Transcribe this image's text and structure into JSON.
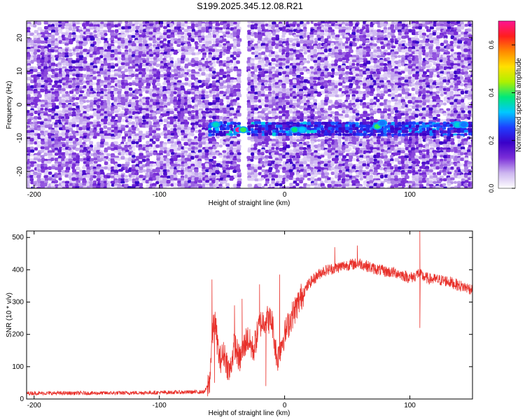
{
  "page": {
    "title": "S199.2025.345.12.08.R21"
  },
  "colors": {
    "series_line": "#e8302a",
    "axis": "#000000",
    "background": "#ffffff",
    "colorbar_stops": [
      "#ffffff",
      "#cdb6f0",
      "#7b2fd8",
      "#3a00c8",
      "#1f3dff",
      "#00c8ff",
      "#00e87a",
      "#aef000",
      "#ffe000",
      "#ff8a00",
      "#ff1e1e",
      "#ff1493"
    ]
  },
  "chart_data": [
    {
      "type": "heatmap",
      "title": "S199.2025.345.12.08.R21",
      "xlabel": "Height of straight line (km)",
      "ylabel": "Frequency (Hz)",
      "xlim": [
        -206,
        150
      ],
      "ylim": [
        -25,
        25
      ],
      "x_ticks": [
        -200,
        -100,
        0,
        100
      ],
      "x_tick_labels": [
        "-200",
        "-100",
        "0",
        "100"
      ],
      "y_ticks": [
        -20,
        -10,
        0,
        10,
        20
      ],
      "y_tick_labels": [
        "-20",
        "-10",
        "0",
        "10",
        "20"
      ],
      "colorbar": {
        "label": "Normalized spectral amplitude",
        "range": [
          0.0,
          0.7
        ],
        "ticks": [
          0.0,
          0.2,
          0.4,
          0.6
        ],
        "tick_labels": [
          "0.0",
          "0.2",
          "0.4",
          "0.6"
        ]
      },
      "features": {
        "signal_band": {
          "frequency_hz": -6.5,
          "x_start": -62,
          "x_end": 150,
          "peak_points": [
            {
              "x": -55,
              "y": -6,
              "amp": 0.35
            },
            {
              "x": -37,
              "y": -7.5,
              "amp": 0.7
            },
            {
              "x": -33,
              "y": -7.5,
              "amp": 0.4
            },
            {
              "x": 8,
              "y": -7.5,
              "amp": 0.38
            },
            {
              "x": 14,
              "y": -7.5,
              "amp": 0.32
            },
            {
              "x": 74,
              "y": -6.5,
              "amp": 0.4
            },
            {
              "x": 78,
              "y": -5.5,
              "amp": 0.28
            },
            {
              "x": 138,
              "y": -6,
              "amp": 0.34
            },
            {
              "x": 143,
              "y": -6,
              "amp": 0.28
            }
          ]
        },
        "blank_column_x": [
          -38,
          -30
        ]
      },
      "grid": false
    },
    {
      "type": "line",
      "xlabel": "Height of straight line (km)",
      "ylabel": "SNR (10 * v/v)",
      "xlim": [
        -206,
        150
      ],
      "ylim": [
        0,
        520
      ],
      "x_ticks": [
        -200,
        -100,
        0,
        100
      ],
      "x_tick_labels": [
        "-200",
        "-100",
        "0",
        "100"
      ],
      "y_ticks": [
        0,
        100,
        200,
        300,
        400,
        500
      ],
      "y_tick_labels": [
        "0",
        "100",
        "200",
        "300",
        "400",
        "500"
      ],
      "grid": false,
      "series": [
        {
          "color": "#e8302a",
          "envelope": {
            "x": [
              -206,
              -150,
              -100,
              -64,
              -60,
              -58,
              -56,
              -52,
              -48,
              -44,
              -40,
              -36,
              -30,
              -25,
              -20,
              -15,
              -10,
              -6,
              -2,
              5,
              10,
              15,
              20,
              30,
              40,
              50,
              60,
              70,
              80,
              90,
              100,
              104,
              107,
              110,
              115,
              120,
              130,
              140,
              150
            ],
            "y": [
              18,
              18,
              20,
              22,
              50,
              180,
              250,
              120,
              140,
              80,
              170,
              120,
              190,
              150,
              230,
              250,
              240,
              120,
              180,
              250,
              290,
              330,
              360,
              395,
              405,
              415,
              420,
              405,
              395,
              390,
              375,
              380,
              390,
              380,
              372,
              370,
              365,
              350,
              340
            ]
          },
          "spikes": [
            {
              "x": -58,
              "y": 370
            },
            {
              "x": -56,
              "y": 50
            },
            {
              "x": -40,
              "y": 290
            },
            {
              "x": -34,
              "y": 310
            },
            {
              "x": -20,
              "y": 355
            },
            {
              "x": -15,
              "y": 40
            },
            {
              "x": -4,
              "y": 385
            },
            {
              "x": 40,
              "y": 470
            },
            {
              "x": 58,
              "y": 475
            },
            {
              "x": 108,
              "y": 520
            },
            {
              "x": 108,
              "y": 220
            }
          ]
        }
      ]
    }
  ]
}
